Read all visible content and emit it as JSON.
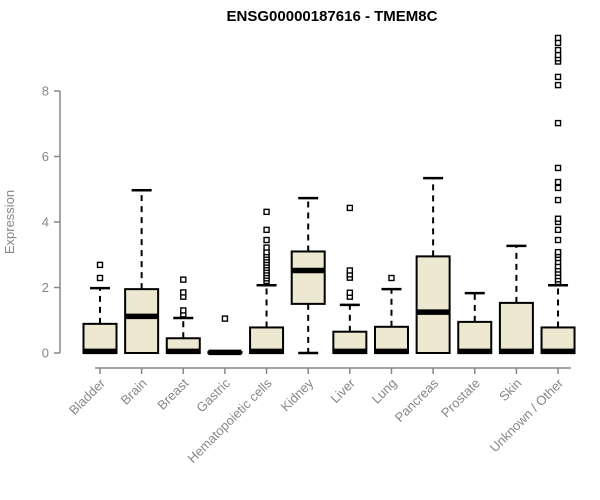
{
  "title": "ENSG00000187616 - TMEM8C",
  "chart_data": {
    "type": "boxplot",
    "title": "ENSG00000187616 - TMEM8C",
    "xlabel": "",
    "ylabel": "Expression",
    "ylim": [
      0,
      9.7
    ],
    "yticks": [
      0,
      2,
      4,
      6,
      8
    ],
    "grid": false,
    "legend": "none",
    "colors": {
      "box_fill": "#EDE8D0",
      "box_stroke": "#000000",
      "median": "#000000",
      "whisker": "#000000",
      "outlier_stroke": "#000000",
      "outlier_fill": "#FFFFFF",
      "axis": "#878787",
      "title": "#000000"
    },
    "categories": [
      "Bladder",
      "Brain",
      "Breast",
      "Gastric",
      "Hematopoietic cells",
      "Kidney",
      "Liver",
      "Lung",
      "Pancreas",
      "Prostate",
      "Skin",
      "Unknown / Other"
    ],
    "series": [
      {
        "name": "Bladder",
        "low": 0,
        "q1": 0,
        "median": 0.05,
        "q3": 0.89,
        "high": 1.98,
        "outliers": [
          2.29,
          2.69
        ]
      },
      {
        "name": "Brain",
        "low": 0,
        "q1": 0,
        "median": 1.12,
        "q3": 1.95,
        "high": 4.97,
        "outliers": []
      },
      {
        "name": "Breast",
        "low": 0,
        "q1": 0,
        "median": 0.05,
        "q3": 0.45,
        "high": 1.07,
        "outliers": [
          1.18,
          1.3,
          1.72,
          1.85,
          2.24
        ]
      },
      {
        "name": "Gastric",
        "low": 0,
        "q1": 0,
        "median": 0.02,
        "q3": 0.03,
        "high": 0.03,
        "outliers": [
          1.05
        ]
      },
      {
        "name": "Hematopoietic cells",
        "low": 0,
        "q1": 0,
        "median": 0.05,
        "q3": 0.78,
        "high": 2.07,
        "outliers": [
          2.2,
          2.28,
          2.36,
          2.44,
          2.52,
          2.6,
          2.68,
          2.76,
          2.84,
          2.92,
          3.0,
          3.08,
          3.22,
          3.45,
          3.76,
          4.31
        ]
      },
      {
        "name": "Kidney",
        "low": 0,
        "q1": 1.5,
        "median": 2.52,
        "q3": 3.1,
        "high": 4.73,
        "outliers": []
      },
      {
        "name": "Liver",
        "low": 0,
        "q1": 0,
        "median": 0.05,
        "q3": 0.65,
        "high": 1.47,
        "outliers": [
          1.72,
          1.84,
          2.3,
          2.4,
          2.52,
          4.43
        ]
      },
      {
        "name": "Lung",
        "low": 0,
        "q1": 0,
        "median": 0.05,
        "q3": 0.8,
        "high": 1.95,
        "outliers": [
          2.29
        ]
      },
      {
        "name": "Pancreas",
        "low": 0,
        "q1": 0,
        "median": 1.25,
        "q3": 2.95,
        "high": 5.34,
        "outliers": []
      },
      {
        "name": "Prostate",
        "low": 0,
        "q1": 0,
        "median": 0.05,
        "q3": 0.95,
        "high": 1.83,
        "outliers": []
      },
      {
        "name": "Skin",
        "low": 0,
        "q1": 0,
        "median": 0.05,
        "q3": 1.53,
        "high": 3.27,
        "outliers": []
      },
      {
        "name": "Unknown / Other",
        "low": 0,
        "q1": 0,
        "median": 0.05,
        "q3": 0.78,
        "high": 2.07,
        "outliers": [
          2.17,
          2.25,
          2.35,
          2.45,
          2.55,
          2.65,
          2.78,
          2.9,
          3.0,
          3.08,
          3.45,
          3.76,
          4.0,
          4.1,
          4.67,
          5.04,
          5.22,
          5.65,
          7.02,
          8.18,
          8.43,
          8.9,
          9.0,
          9.1,
          9.25,
          9.47,
          9.62
        ]
      }
    ]
  }
}
